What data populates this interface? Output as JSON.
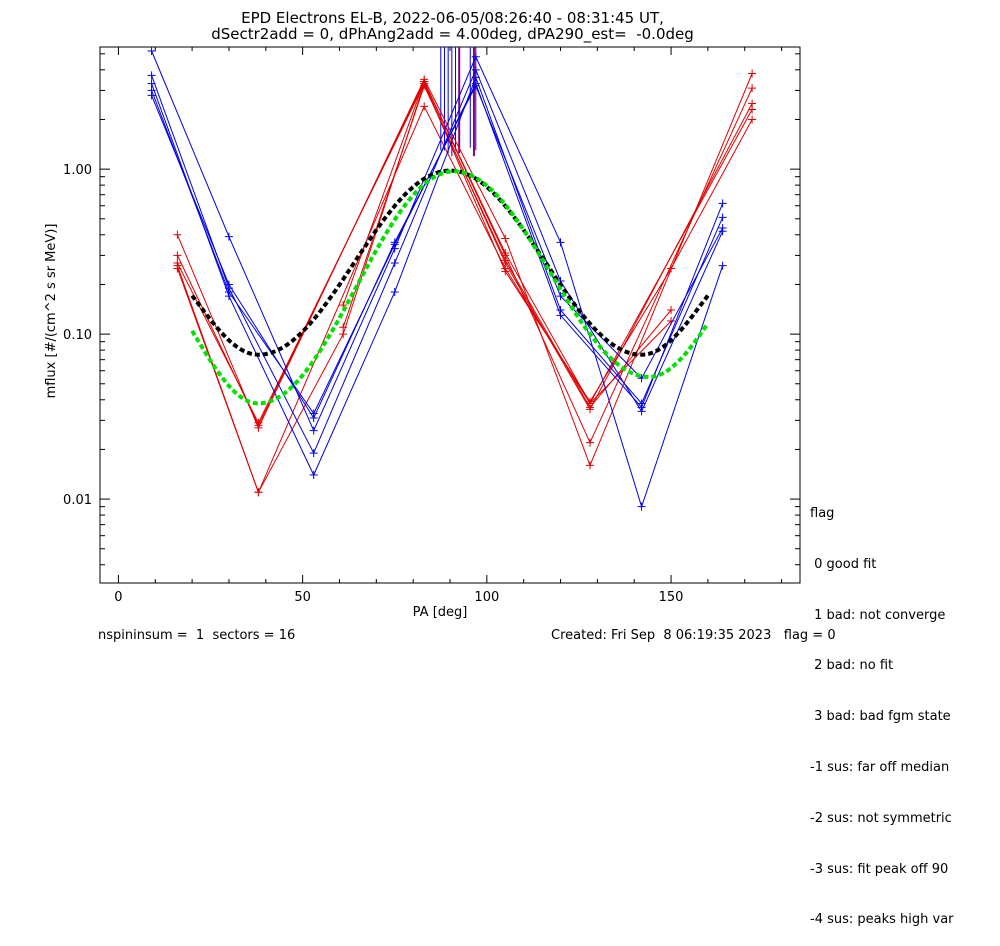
{
  "header": {
    "title_line1": "EPD Electrons EL-B, 2022-06-05/08:26:40 - 08:31:45 UT,",
    "title_line2": "dSectr2add = 0, dPhAng2add = 4.00deg, dPA290_est=  -0.0deg"
  },
  "footer": {
    "left": "nspininsum =  1  sectors = 16",
    "right": "Created: Fri Sep  8 06:19:35 2023   flag = 0"
  },
  "legend": {
    "title": "flag",
    "items": [
      " 0 good fit",
      " 1 bad: not converge",
      " 2 bad: no fit",
      " 3 bad: bad fgm state",
      "-1 sus: far off median",
      "-2 sus: not symmetric",
      "-3 sus: fit peak off 90",
      "-4 sus: peaks high var"
    ]
  },
  "colors": {
    "red": "#e00000",
    "blue": "#0000e6",
    "black_fit": "#000000",
    "green_fit": "#00e000",
    "purple": "#800080"
  },
  "chart_data": {
    "type": "line",
    "xlabel": "PA [deg]",
    "ylabel": "mflux [#/(cm^2 s sr MeV)]",
    "xlim": [
      -5,
      185
    ],
    "ylim": [
      0.0031,
      5.5
    ],
    "yscale": "log",
    "xticks": [
      0,
      50,
      100,
      150
    ],
    "xtick_labels": [
      "0",
      "50",
      "100",
      "150"
    ],
    "yticks": [
      0.01,
      0.1,
      1.0
    ],
    "ytick_labels": [
      "0.01",
      "0.10",
      "1.00"
    ],
    "red_series": [
      {
        "x": [
          16,
          38,
          83,
          105,
          128,
          172
        ],
        "y": [
          0.4,
          0.027,
          3.5,
          0.38,
          0.016,
          3.8
        ]
      },
      {
        "x": [
          16,
          38,
          83,
          105,
          128,
          172
        ],
        "y": [
          0.3,
          0.028,
          3.4,
          0.3,
          0.022,
          3.1
        ]
      },
      {
        "x": [
          16,
          38,
          83,
          105,
          128,
          172
        ],
        "y": [
          0.27,
          0.029,
          3.3,
          0.27,
          0.035,
          2.5
        ]
      },
      {
        "x": [
          16,
          38,
          83,
          105,
          128,
          172
        ],
        "y": [
          0.25,
          0.011,
          2.4,
          0.25,
          0.038,
          2.3
        ]
      },
      {
        "x": [
          16,
          38,
          61,
          83,
          105,
          128,
          150,
          172
        ],
        "y": [
          0.26,
          0.011,
          0.1,
          3.3,
          0.24,
          0.039,
          0.25,
          2.0
        ]
      },
      {
        "x": [
          61,
          83,
          105,
          128,
          150
        ],
        "y": [
          0.11,
          3.2,
          0.28,
          0.036,
          0.14
        ]
      },
      {
        "x": [
          61,
          83,
          105,
          128,
          150
        ],
        "y": [
          0.15,
          3.4,
          0.31,
          0.038,
          0.12
        ]
      }
    ],
    "blue_series": [
      {
        "x": [
          9,
          30,
          53,
          75,
          97,
          120,
          142,
          164
        ],
        "y": [
          5.2,
          0.39,
          0.026,
          0.33,
          4.8,
          0.36,
          0.009,
          0.26
        ]
      },
      {
        "x": [
          9,
          30,
          53,
          75,
          97,
          120,
          142,
          164
        ],
        "y": [
          3.7,
          0.19,
          0.019,
          0.27,
          4.0,
          0.21,
          0.034,
          0.42
        ]
      },
      {
        "x": [
          9,
          30,
          53,
          75,
          97,
          120,
          142,
          164
        ],
        "y": [
          3.3,
          0.17,
          0.014,
          0.18,
          3.6,
          0.14,
          0.038,
          0.51
        ]
      },
      {
        "x": [
          9,
          30,
          53,
          75,
          97,
          120,
          142,
          164
        ],
        "y": [
          3.0,
          0.18,
          0.033,
          0.35,
          3.3,
          0.13,
          0.036,
          0.62
        ]
      },
      {
        "x": [
          9,
          30,
          53,
          75,
          97,
          120,
          142,
          164
        ],
        "y": [
          2.8,
          0.2,
          0.031,
          0.36,
          3.2,
          0.17,
          0.054,
          0.44
        ]
      }
    ],
    "vertical_lines": {
      "blue_x": [
        87.5,
        88.5,
        89.5,
        90.5,
        91.5,
        95.5,
        96.5,
        97
      ],
      "purple_x": [
        92.5,
        96.5
      ],
      "y_top": 5.5,
      "y_bottom": [
        1.3,
        1.3,
        1.25,
        1.2,
        1.3,
        1.35,
        1.4,
        1.3
      ],
      "purple_bottom": [
        1.25,
        1.2
      ]
    },
    "fits": [
      {
        "color": "black",
        "x_start": 20,
        "x_end": 160,
        "center": 90,
        "half_period": 52,
        "peak": 0.98,
        "trough": 0.075,
        "right_end_value": 0.18
      },
      {
        "color": "green",
        "x_start": 20,
        "x_end": 160,
        "center": 91,
        "half_period": 53,
        "peak": 0.97,
        "trough": 0.038,
        "right_trough": 0.055,
        "right_end_value": 0.15
      }
    ]
  }
}
